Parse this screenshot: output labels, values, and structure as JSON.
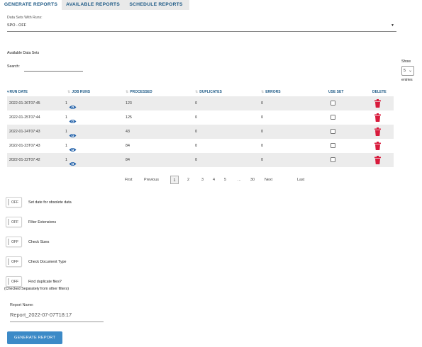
{
  "tabs": [
    {
      "label": "GENERATE REPORTS",
      "active": true
    },
    {
      "label": "AVAILABLE REPORTS",
      "active": false
    },
    {
      "label": "SCHEDULE REPORTS",
      "active": false
    }
  ],
  "datasets_field": {
    "label": "Data Sets With Runs:",
    "value": "SPO - OFF"
  },
  "available_heading": "Available Data Sets",
  "search_label": "Search:",
  "show_entries": {
    "prefix": "Show",
    "value": "5",
    "suffix": "entries"
  },
  "table": {
    "headers": [
      "RUN DATE",
      "JOB RUNS",
      "PROCESSED",
      "DUPLICATES",
      "ERRORS",
      "USE SET",
      "DELETE"
    ],
    "rows": [
      {
        "run_date": "2022-01-26T07:45",
        "job_runs": "1",
        "processed": "123",
        "duplicates": "0",
        "errors": "0",
        "use_set": false
      },
      {
        "run_date": "2022-01-25T07:44",
        "job_runs": "1",
        "processed": "125",
        "duplicates": "0",
        "errors": "0",
        "use_set": false
      },
      {
        "run_date": "2022-01-24T07:43",
        "job_runs": "1",
        "processed": "43",
        "duplicates": "0",
        "errors": "0",
        "use_set": false
      },
      {
        "run_date": "2022-01-23T07:43",
        "job_runs": "1",
        "processed": "84",
        "duplicates": "0",
        "errors": "0",
        "use_set": false
      },
      {
        "run_date": "2022-01-22T07:42",
        "job_runs": "1",
        "processed": "84",
        "duplicates": "0",
        "errors": "0",
        "use_set": false
      }
    ]
  },
  "pagination": {
    "first": "First",
    "previous": "Previous",
    "current": "1",
    "pages": [
      "2",
      "3",
      "4",
      "5",
      "...",
      "30"
    ],
    "next": "Next",
    "last": "Last"
  },
  "toggles": [
    {
      "state": "OFF",
      "label": "Set date for obsolete data"
    },
    {
      "state": "OFF",
      "label": "Filter Extensions"
    },
    {
      "state": "OFF",
      "label": "Check Sizes"
    },
    {
      "state": "OFF",
      "label": "Check Document Type"
    },
    {
      "state": "OFF",
      "label": "Find duplicate files?"
    }
  ],
  "duplicate_note": "(Checked Separately from other filters)",
  "report_name": {
    "label": "Report Name:",
    "value": "Report_2022-07-07T18:17"
  },
  "generate_button": "GENERATE REPORT",
  "colors": {
    "accent": "#3c8ac7",
    "header_text": "#1e5a86",
    "delete": "#d81b3c",
    "eye": "#1f5fa8"
  }
}
